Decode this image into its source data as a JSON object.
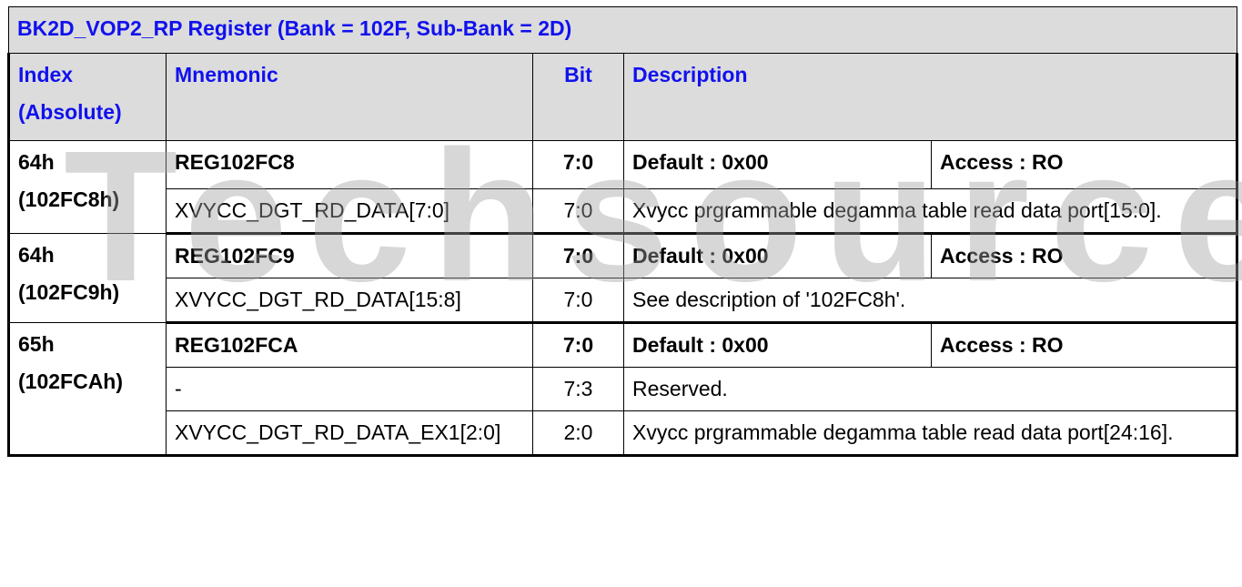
{
  "title": "BK2D_VOP2_RP Register (Bank = 102F, Sub-Bank = 2D)",
  "headers": {
    "index": "Index (Absolute)",
    "mnemonic": "Mnemonic",
    "bit": "Bit",
    "description": "Description"
  },
  "watermark": "Techsource",
  "groups": [
    {
      "index": "64h (102FC8h)",
      "reg": {
        "name": "REG102FC8",
        "bit": "7:0",
        "default": "Default : 0x00",
        "access": "Access : RO"
      },
      "fields": [
        {
          "mnemonic": "XVYCC_DGT_RD_DATA[7:0]",
          "bit": "7:0",
          "description": "Xvycc prgrammable degamma table read data port[15:0]."
        }
      ]
    },
    {
      "index": "64h (102FC9h)",
      "reg": {
        "name": "REG102FC9",
        "bit": "7:0",
        "default": "Default : 0x00",
        "access": "Access : RO"
      },
      "fields": [
        {
          "mnemonic": "XVYCC_DGT_RD_DATA[15:8]",
          "bit": "7:0",
          "description": "See description of '102FC8h'."
        }
      ]
    },
    {
      "index": "65h (102FCAh)",
      "reg": {
        "name": "REG102FCA",
        "bit": "7:0",
        "default": "Default : 0x00",
        "access": "Access : RO"
      },
      "fields": [
        {
          "mnemonic": "-",
          "bit": "7:3",
          "description": "Reserved."
        },
        {
          "mnemonic": "XVYCC_DGT_RD_DATA_EX1[2:0]",
          "bit": "2:0",
          "description": "Xvycc prgrammable degamma table read data port[24:16]."
        }
      ]
    }
  ]
}
